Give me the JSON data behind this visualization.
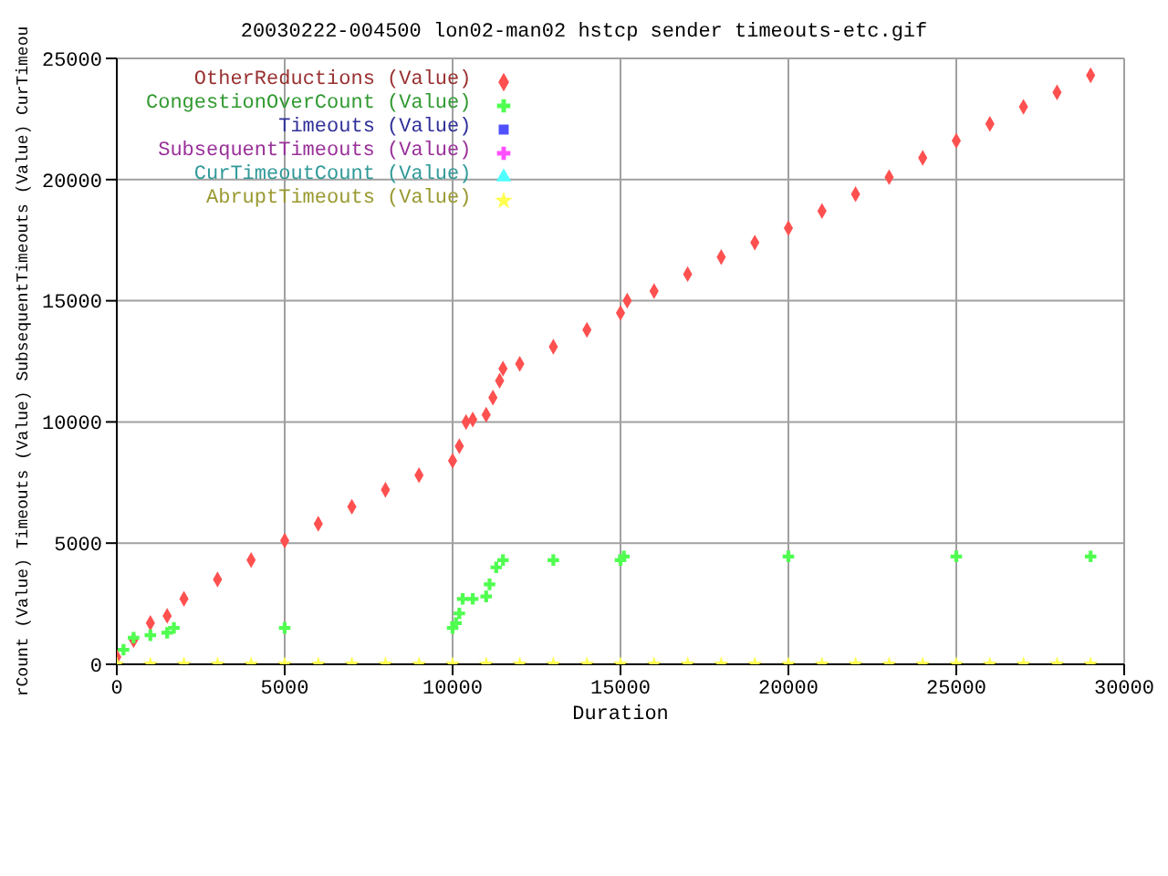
{
  "chart_data": {
    "type": "scatter",
    "title": "20030222-004500 lon02-man02 hstcp sender timeouts-etc.gif",
    "xlabel": "Duration",
    "ylabel": "rCount (Value) Timeouts (Value) SubsequentTimeouts (Value) CurTimeou",
    "xlim": [
      0,
      30000
    ],
    "xticks": [
      0,
      5000,
      10000,
      15000,
      20000,
      25000,
      30000
    ],
    "ylim": [
      0,
      25000
    ],
    "yticks": [
      0,
      5000,
      10000,
      15000,
      20000,
      25000
    ],
    "grid": true,
    "legend": "top left",
    "series": [
      {
        "name": "OtherReductions (Value)",
        "color": "#ff5050",
        "marker": "diamond",
        "x": [
          0,
          500,
          1000,
          1500,
          2000,
          3000,
          4000,
          5000,
          6000,
          7000,
          8000,
          9000,
          10000,
          10200,
          10400,
          10600,
          11000,
          11200,
          11400,
          11500,
          12000,
          13000,
          14000,
          15000,
          15200,
          16000,
          17000,
          18000,
          19000,
          20000,
          21000,
          22000,
          23000,
          24000,
          25000,
          26000,
          27000,
          28000,
          29000
        ],
        "values": [
          300,
          1000,
          1700,
          2000,
          2700,
          3500,
          4300,
          5100,
          5800,
          6500,
          7200,
          7800,
          8400,
          9000,
          10000,
          10100,
          10300,
          11000,
          11700,
          12200,
          12400,
          13100,
          13800,
          14500,
          15000,
          15400,
          16100,
          16800,
          17400,
          18000,
          18700,
          19400,
          20100,
          20900,
          21600,
          22300,
          23000,
          23600,
          24300
        ]
      },
      {
        "name": "CongestionOverCount (Value)",
        "color": "#50ff50",
        "marker": "cross",
        "x": [
          200,
          500,
          1000,
          1500,
          1700,
          5000,
          10000,
          10100,
          10200,
          10300,
          10600,
          11000,
          11100,
          11300,
          11500,
          13000,
          15000,
          15100,
          20000,
          25000,
          29000
        ],
        "values": [
          600,
          1100,
          1200,
          1300,
          1500,
          1500,
          1500,
          1700,
          2100,
          2700,
          2700,
          2800,
          3300,
          4000,
          4300,
          4300,
          4300,
          4450,
          4450,
          4450,
          4450
        ]
      },
      {
        "name": "Timeouts (Value)",
        "color": "#5050ff",
        "marker": "square"
      },
      {
        "name": "SubsequentTimeouts (Value)",
        "color": "#ff50ff",
        "marker": "cross"
      },
      {
        "name": "CurTimeoutCount (Value)",
        "color": "#50ffff",
        "marker": "triangle"
      },
      {
        "name": "AbruptTimeouts (Value)",
        "color": "#ffff50",
        "marker": "star",
        "x": [
          0,
          1000,
          2000,
          3000,
          4000,
          5000,
          6000,
          7000,
          8000,
          9000,
          10000,
          11000,
          12000,
          13000,
          14000,
          15000,
          16000,
          17000,
          18000,
          19000,
          20000,
          21000,
          22000,
          23000,
          24000,
          25000,
          26000,
          27000,
          28000,
          29000
        ],
        "values": [
          0,
          0,
          0,
          0,
          0,
          0,
          0,
          0,
          0,
          0,
          0,
          0,
          0,
          0,
          0,
          0,
          0,
          0,
          0,
          0,
          0,
          0,
          0,
          0,
          0,
          0,
          0,
          0,
          0,
          0
        ]
      }
    ]
  }
}
